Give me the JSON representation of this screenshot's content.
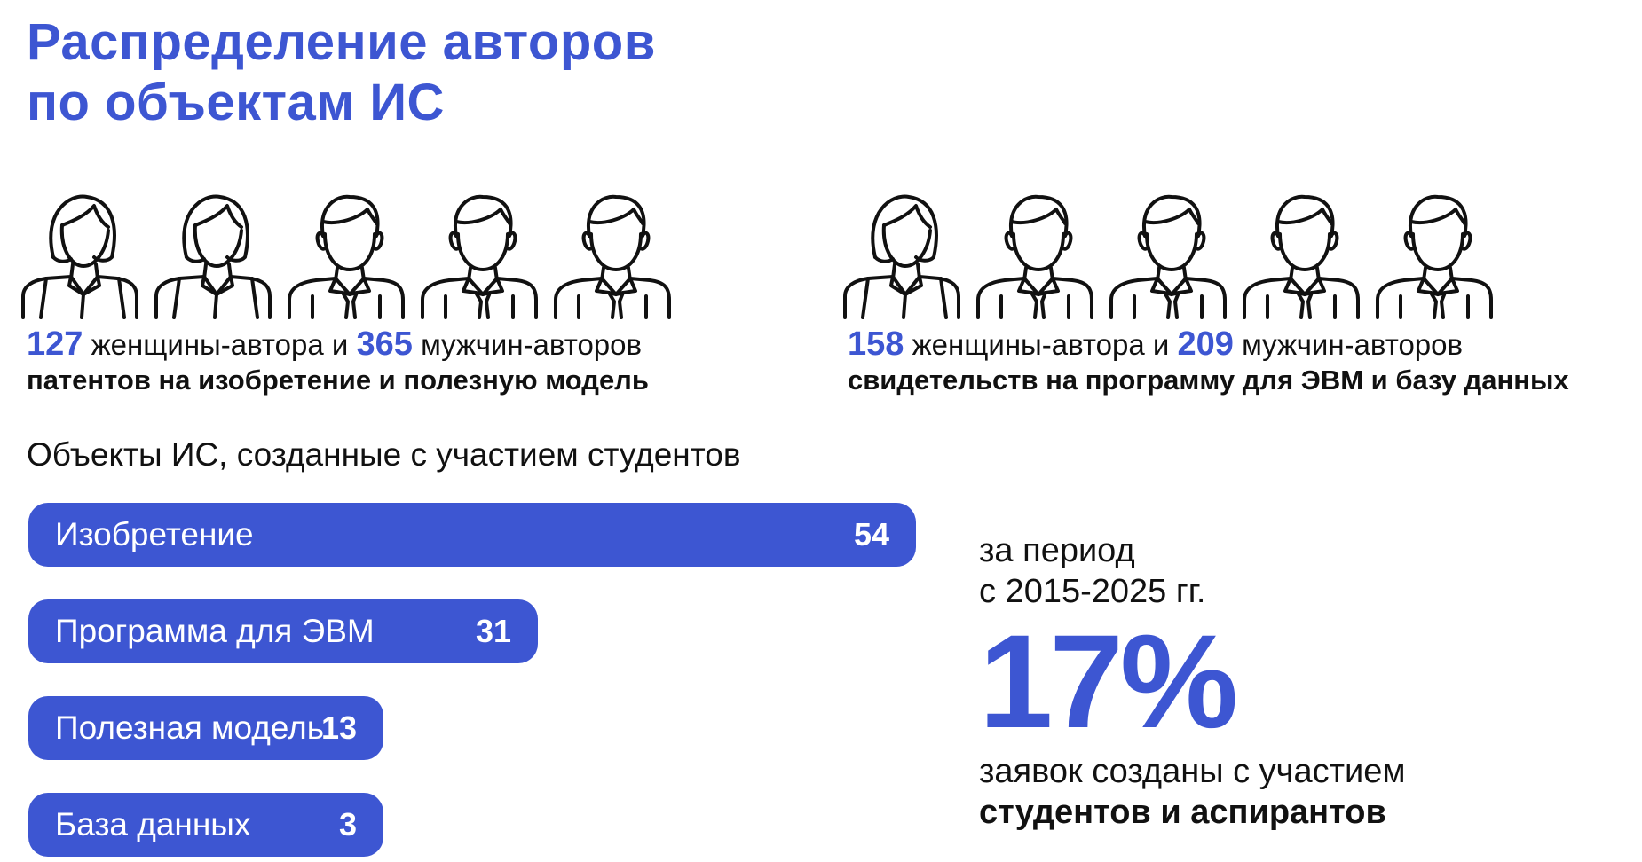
{
  "title": {
    "line1": "Распределение авторов",
    "line2": "по объектам ИС"
  },
  "colors": {
    "accent": "#3d56d2",
    "text": "#111111",
    "bar_text": "#ffffff"
  },
  "groups": [
    {
      "icons": [
        "woman-icon",
        "woman-icon",
        "man-icon",
        "man-icon",
        "man-icon"
      ],
      "women_count": "127",
      "women_text": "женщины-автора и",
      "men_count": "365",
      "men_text": "мужчин-авторов",
      "object": "патентов на изобретение и полезную модель"
    },
    {
      "icons": [
        "woman-icon",
        "man-icon",
        "man-icon",
        "man-icon",
        "man-icon"
      ],
      "women_count": "158",
      "women_text": "женщины-автора и",
      "men_count": "209",
      "men_text": "мужчин-авторов",
      "object": "свидетельств на программу для ЭВМ и базу данных"
    }
  ],
  "chart_data": {
    "type": "bar",
    "orientation": "horizontal",
    "title": "Объекты ИС, созданные с участием студентов",
    "categories": [
      "Изобретение",
      "Программа для ЭВМ",
      "Полезная модель",
      "База данных"
    ],
    "values": [
      54,
      31,
      13,
      3
    ],
    "value_labels": [
      "54",
      "31",
      "13",
      "3"
    ]
  },
  "summary": {
    "period_line1": "за период",
    "period_line2": "с 2015-2025 гг.",
    "percent": "17%",
    "note_line1": "заявок созданы с участием",
    "note_line2": "студентов и аспирантов"
  }
}
